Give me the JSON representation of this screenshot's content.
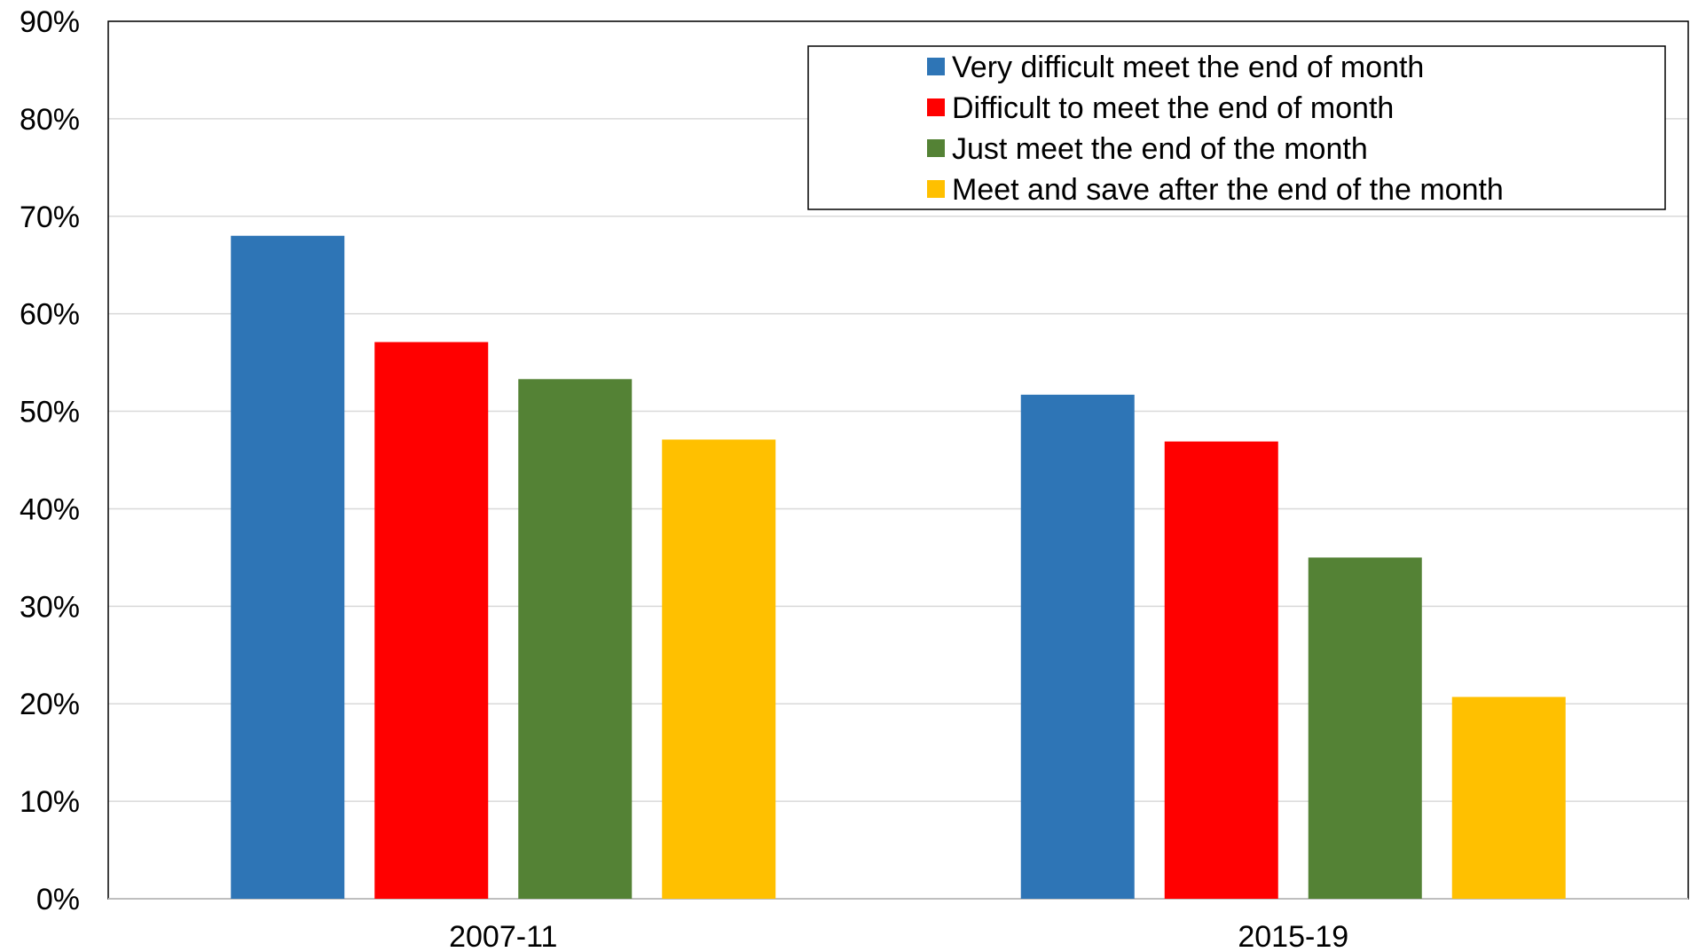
{
  "chart_data": {
    "type": "bar",
    "categories": [
      "2007-11",
      "2015-19"
    ],
    "series": [
      {
        "name": "Very difficult meet the end of month",
        "color": "#2E75B6",
        "values": [
          68,
          51.7
        ]
      },
      {
        "name": "Difficult to meet the end of month",
        "color": "#FF0000",
        "values": [
          57.1,
          46.9
        ]
      },
      {
        "name": "Just meet the end of the month",
        "color": "#548235",
        "values": [
          53.3,
          35
        ]
      },
      {
        "name": "Meet and save after the end of the month",
        "color": "#FFC000",
        "values": [
          47.1,
          20.7
        ]
      }
    ],
    "ylim": [
      0,
      90
    ],
    "yticks": [
      "0%",
      "10%",
      "20%",
      "30%",
      "40%",
      "50%",
      "60%",
      "70%",
      "80%",
      "90%"
    ],
    "title": "",
    "xlabel": "",
    "ylabel": "",
    "grid": true,
    "legend_position": "top-right"
  }
}
